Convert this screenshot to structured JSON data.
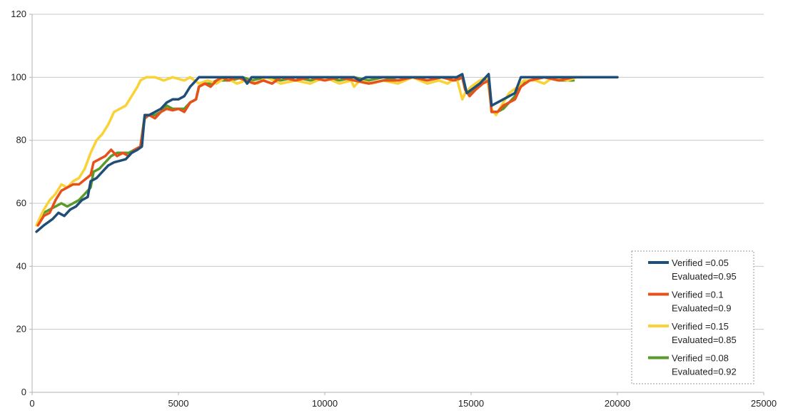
{
  "chart_data": {
    "type": "line",
    "title": "",
    "xlabel": "",
    "ylabel": "",
    "xlim": [
      0,
      25000
    ],
    "ylim": [
      0,
      120
    ],
    "x_ticks": [
      "0",
      "5000",
      "10000",
      "15000",
      "20000",
      "25000"
    ],
    "y_ticks": [
      "0",
      "20",
      "40",
      "60",
      "80",
      "100",
      "120"
    ],
    "grid": "horizontal",
    "legend_position": "bottom-right",
    "series": [
      {
        "name": "Verified =0.05",
        "name_line2": "Evaluated=0.95",
        "color": "#1f4e79",
        "points": [
          [
            150,
            51
          ],
          [
            400,
            53
          ],
          [
            700,
            55
          ],
          [
            900,
            57
          ],
          [
            1100,
            56
          ],
          [
            1300,
            58
          ],
          [
            1500,
            59
          ],
          [
            1700,
            61
          ],
          [
            1900,
            62
          ],
          [
            2000,
            67
          ],
          [
            2200,
            68
          ],
          [
            2400,
            70
          ],
          [
            2600,
            72
          ],
          [
            2800,
            73
          ],
          [
            3000,
            73.5
          ],
          [
            3200,
            74
          ],
          [
            3400,
            76
          ],
          [
            3600,
            77
          ],
          [
            3750,
            78
          ],
          [
            3850,
            88
          ],
          [
            4000,
            88
          ],
          [
            4200,
            89
          ],
          [
            4400,
            90
          ],
          [
            4600,
            92
          ],
          [
            4800,
            93
          ],
          [
            5000,
            93
          ],
          [
            5200,
            94
          ],
          [
            5400,
            97
          ],
          [
            5600,
            99
          ],
          [
            5700,
            100
          ],
          [
            6000,
            100
          ],
          [
            7200,
            100
          ],
          [
            7350,
            98
          ],
          [
            7500,
            100
          ],
          [
            9000,
            100
          ],
          [
            10000,
            100
          ],
          [
            11000,
            100
          ],
          [
            11200,
            99
          ],
          [
            11400,
            100
          ],
          [
            13000,
            100
          ],
          [
            14500,
            100
          ],
          [
            14700,
            101
          ],
          [
            14850,
            95
          ],
          [
            15000,
            96
          ],
          [
            15300,
            98
          ],
          [
            15500,
            100
          ],
          [
            15600,
            101
          ],
          [
            15700,
            91
          ],
          [
            15900,
            92
          ],
          [
            16100,
            93
          ],
          [
            16300,
            94
          ],
          [
            16500,
            95
          ],
          [
            16700,
            100
          ],
          [
            17000,
            100
          ],
          [
            18000,
            100
          ],
          [
            19000,
            100
          ],
          [
            20000,
            100
          ]
        ]
      },
      {
        "name": "Verified =0.1",
        "name_line2": "Evaluated=0.9",
        "color": "#e8501a",
        "points": [
          [
            200,
            53
          ],
          [
            400,
            56
          ],
          [
            600,
            57
          ],
          [
            800,
            61
          ],
          [
            1000,
            64
          ],
          [
            1200,
            65
          ],
          [
            1400,
            66
          ],
          [
            1600,
            66
          ],
          [
            1800,
            67.5
          ],
          [
            2000,
            69
          ],
          [
            2100,
            73
          ],
          [
            2300,
            74
          ],
          [
            2500,
            75
          ],
          [
            2700,
            77
          ],
          [
            2900,
            75
          ],
          [
            3100,
            76
          ],
          [
            3300,
            75
          ],
          [
            3500,
            77
          ],
          [
            3700,
            78
          ],
          [
            3850,
            87
          ],
          [
            4000,
            88
          ],
          [
            4200,
            87
          ],
          [
            4400,
            89
          ],
          [
            4600,
            90
          ],
          [
            4800,
            89.5
          ],
          [
            5000,
            90
          ],
          [
            5200,
            89
          ],
          [
            5400,
            92
          ],
          [
            5600,
            93
          ],
          [
            5700,
            97
          ],
          [
            5900,
            98
          ],
          [
            6100,
            97
          ],
          [
            6300,
            99
          ],
          [
            6500,
            100
          ],
          [
            6700,
            99
          ],
          [
            7000,
            100
          ],
          [
            7300,
            99
          ],
          [
            7600,
            98
          ],
          [
            7900,
            99
          ],
          [
            8200,
            98
          ],
          [
            8500,
            100
          ],
          [
            9000,
            99
          ],
          [
            9500,
            100
          ],
          [
            10000,
            99
          ],
          [
            10500,
            100
          ],
          [
            11000,
            99
          ],
          [
            11500,
            98
          ],
          [
            12000,
            99
          ],
          [
            12500,
            99
          ],
          [
            13000,
            100
          ],
          [
            13500,
            99
          ],
          [
            14000,
            100
          ],
          [
            14400,
            99
          ],
          [
            14700,
            100
          ],
          [
            14800,
            96
          ],
          [
            14950,
            94
          ],
          [
            15150,
            96
          ],
          [
            15400,
            98
          ],
          [
            15600,
            99
          ],
          [
            15700,
            89
          ],
          [
            15900,
            89
          ],
          [
            16100,
            91
          ],
          [
            16300,
            92
          ],
          [
            16500,
            93
          ],
          [
            16700,
            97
          ],
          [
            17000,
            99
          ],
          [
            17500,
            100
          ],
          [
            18000,
            99
          ],
          [
            18500,
            100
          ],
          [
            19000,
            100
          ]
        ]
      },
      {
        "name": "Verified =0.15",
        "name_line2": "Evaluated=0.85",
        "color": "#f9d236",
        "points": [
          [
            150,
            53
          ],
          [
            400,
            58
          ],
          [
            600,
            61
          ],
          [
            800,
            63
          ],
          [
            1000,
            66
          ],
          [
            1200,
            65
          ],
          [
            1400,
            67
          ],
          [
            1600,
            68
          ],
          [
            1800,
            71
          ],
          [
            2000,
            76
          ],
          [
            2200,
            80
          ],
          [
            2400,
            82
          ],
          [
            2600,
            85
          ],
          [
            2800,
            89
          ],
          [
            3000,
            90
          ],
          [
            3200,
            91
          ],
          [
            3400,
            94
          ],
          [
            3600,
            97
          ],
          [
            3700,
            99
          ],
          [
            3900,
            100
          ],
          [
            4200,
            100
          ],
          [
            4500,
            99
          ],
          [
            4800,
            100
          ],
          [
            5200,
            99
          ],
          [
            5400,
            100
          ],
          [
            5700,
            98
          ],
          [
            6000,
            99
          ],
          [
            6300,
            98
          ],
          [
            6600,
            100
          ],
          [
            7000,
            98
          ],
          [
            7300,
            99
          ],
          [
            7700,
            98
          ],
          [
            8000,
            100
          ],
          [
            8500,
            98
          ],
          [
            9000,
            99
          ],
          [
            9500,
            98
          ],
          [
            10000,
            100
          ],
          [
            10500,
            98
          ],
          [
            10900,
            99
          ],
          [
            11000,
            97
          ],
          [
            11200,
            99
          ],
          [
            11600,
            98
          ],
          [
            12000,
            99
          ],
          [
            12500,
            98
          ],
          [
            13000,
            100
          ],
          [
            13500,
            98
          ],
          [
            13900,
            99
          ],
          [
            14200,
            98
          ],
          [
            14500,
            100
          ],
          [
            14700,
            93
          ],
          [
            14800,
            95
          ],
          [
            15000,
            97
          ],
          [
            15300,
            99
          ],
          [
            15550,
            100
          ],
          [
            15700,
            90
          ],
          [
            15850,
            88
          ],
          [
            16100,
            92
          ],
          [
            16300,
            95
          ],
          [
            16600,
            97
          ],
          [
            16800,
            99
          ],
          [
            17200,
            99
          ],
          [
            17500,
            98
          ],
          [
            17800,
            100
          ],
          [
            18300,
            99
          ],
          [
            18600,
            100
          ],
          [
            19000,
            100
          ]
        ]
      },
      {
        "name": "Verified =0.08",
        "name_line2": "Evaluated=0.92",
        "color": "#5a9a2a",
        "points": [
          [
            200,
            54
          ],
          [
            400,
            57
          ],
          [
            600,
            58
          ],
          [
            800,
            59
          ],
          [
            1000,
            60
          ],
          [
            1200,
            59
          ],
          [
            1400,
            60
          ],
          [
            1600,
            61
          ],
          [
            1800,
            63
          ],
          [
            2000,
            65
          ],
          [
            2100,
            70
          ],
          [
            2300,
            71
          ],
          [
            2500,
            73
          ],
          [
            2700,
            75
          ],
          [
            2900,
            76
          ],
          [
            3100,
            76
          ],
          [
            3300,
            76
          ],
          [
            3500,
            77
          ],
          [
            3700,
            78
          ],
          [
            3850,
            88
          ],
          [
            4000,
            88
          ],
          [
            4200,
            88
          ],
          [
            4400,
            89
          ],
          [
            4600,
            91
          ],
          [
            4800,
            90
          ],
          [
            5000,
            90
          ],
          [
            5200,
            90
          ],
          [
            5400,
            92
          ],
          [
            5600,
            93
          ],
          [
            5700,
            97
          ],
          [
            5900,
            98
          ],
          [
            6100,
            98
          ],
          [
            6300,
            99
          ],
          [
            6500,
            99
          ],
          [
            6800,
            99
          ],
          [
            7200,
            100
          ],
          [
            7500,
            99
          ],
          [
            8000,
            100
          ],
          [
            8500,
            99
          ],
          [
            9000,
            100
          ],
          [
            9500,
            99
          ],
          [
            10000,
            100
          ],
          [
            10500,
            99
          ],
          [
            11000,
            100
          ],
          [
            11500,
            99
          ],
          [
            12000,
            100
          ],
          [
            12500,
            99
          ],
          [
            13000,
            100
          ],
          [
            13500,
            99
          ],
          [
            14000,
            100
          ],
          [
            14500,
            99
          ],
          [
            14700,
            100
          ],
          [
            14800,
            96
          ],
          [
            14950,
            95
          ],
          [
            15150,
            97
          ],
          [
            15400,
            99
          ],
          [
            15600,
            100
          ],
          [
            15700,
            89
          ],
          [
            15900,
            89
          ],
          [
            16100,
            90
          ],
          [
            16300,
            92
          ],
          [
            16500,
            94
          ],
          [
            16700,
            98
          ],
          [
            17000,
            99
          ],
          [
            17500,
            100
          ],
          [
            18000,
            99
          ],
          [
            18500,
            99
          ]
        ]
      }
    ]
  }
}
